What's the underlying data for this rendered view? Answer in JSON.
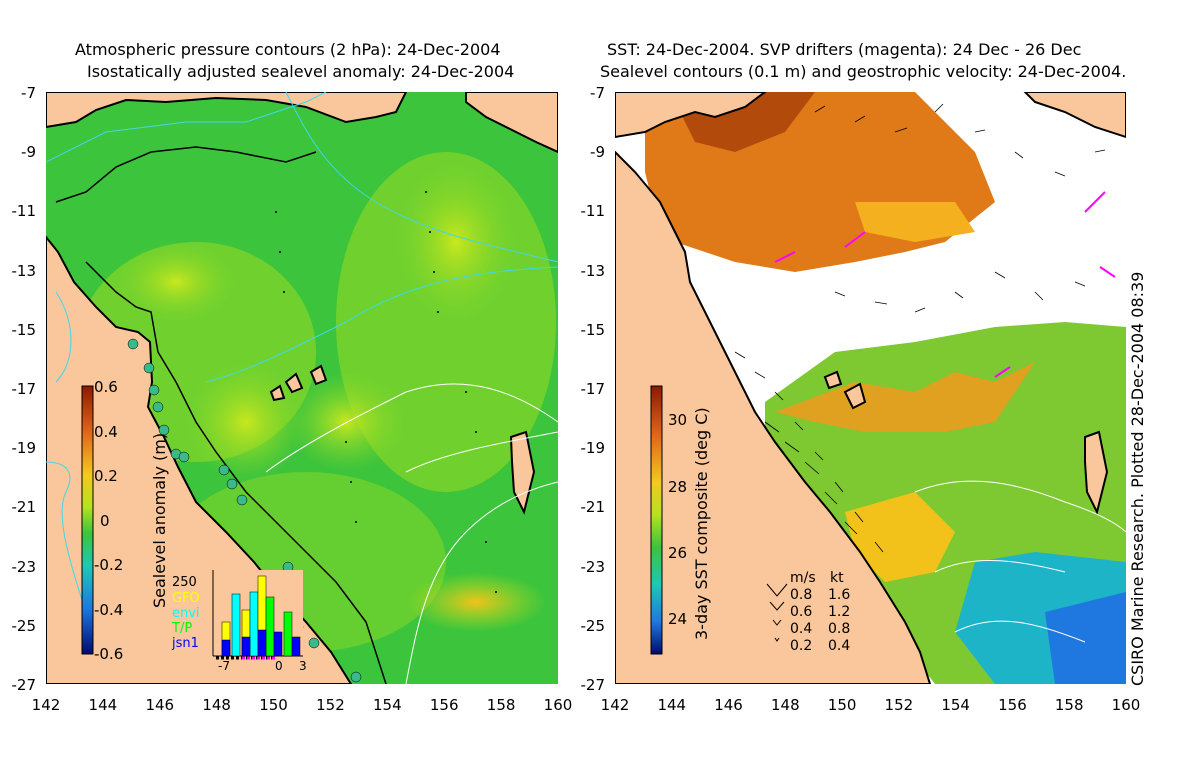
{
  "left_panel": {
    "title_line1": "Atmospheric pressure contours (2 hPa): 24-Dec-2004",
    "title_line2": "Isostatically adjusted sealevel anomaly: 24-Dec-2004",
    "colorbar": {
      "label": "Sealevel anomaly (m)",
      "ticks": [
        "0.6",
        "0.4",
        "0.2",
        "0",
        "-0.2",
        "-0.4",
        "-0.6"
      ]
    },
    "histogram": {
      "ymax_label": "250",
      "legend": [
        {
          "label": "GFO",
          "color": "#ffff00"
        },
        {
          "label": "envi",
          "color": "#00ffff"
        },
        {
          "label": "T/P",
          "color": "#00ff00"
        },
        {
          "label": "jsn1",
          "color": "#0000ff"
        }
      ],
      "x_labels": [
        "-7",
        "0",
        "3"
      ]
    }
  },
  "right_panel": {
    "title_line1": "SST: 24-Dec-2004. SVP drifters (magenta): 24 Dec - 26 Dec",
    "title_line2": "Sealevel contours (0.1 m) and geostrophic velocity: 24-Dec-2004.",
    "colorbar": {
      "label": "3-day SST composite (deg C)",
      "ticks": [
        "30",
        "28",
        "26",
        "24"
      ]
    },
    "velocity_legend": {
      "header_ms": "m/s",
      "header_kt": "kt",
      "rows": [
        {
          "ms": "0.8",
          "kt": "1.6"
        },
        {
          "ms": "0.6",
          "kt": "1.2"
        },
        {
          "ms": "0.4",
          "kt": "0.8"
        },
        {
          "ms": "0.2",
          "kt": "0.4"
        }
      ]
    },
    "credit": "CSIRO Marine Research. Plotted 28-Dec-2004 08:39"
  },
  "axes": {
    "y_ticks": [
      "-7",
      "-9",
      "-11",
      "-13",
      "-15",
      "-17",
      "-19",
      "-21",
      "-23",
      "-25",
      "-27"
    ],
    "x_ticks": [
      "142",
      "144",
      "146",
      "148",
      "150",
      "152",
      "154",
      "156",
      "158",
      "160"
    ]
  },
  "colors": {
    "land": "#f9c79b",
    "anomaly_green": "#3cc43c",
    "sst_orange": "#e07a18",
    "contour_cyan": "#40d8e8",
    "drifter_magenta": "#ff00ff"
  }
}
